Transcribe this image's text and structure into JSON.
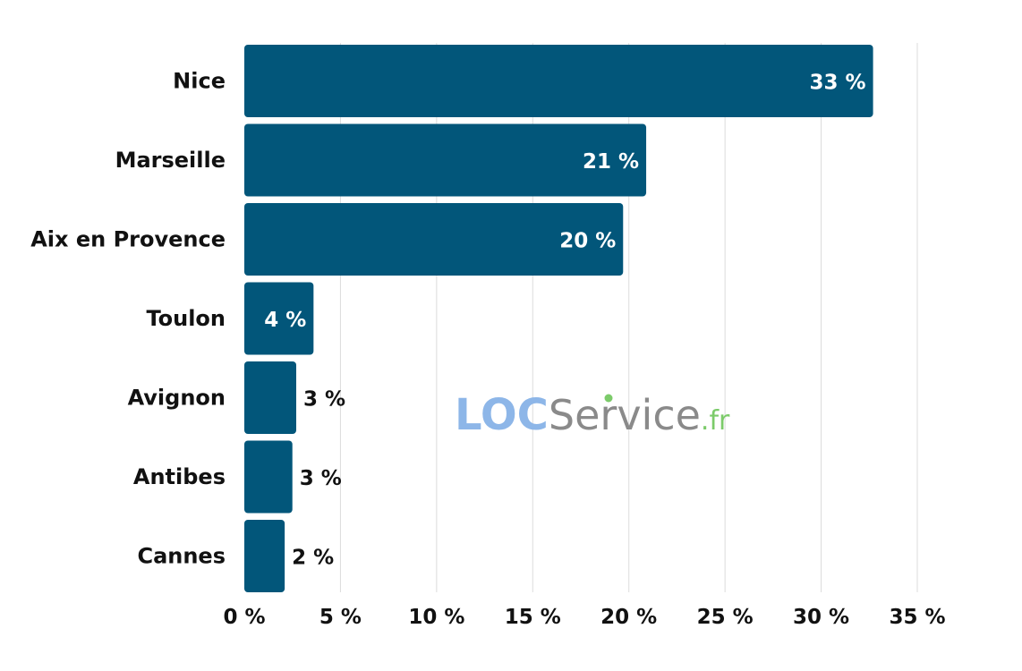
{
  "chart_data": {
    "type": "bar",
    "orientation": "horizontal",
    "categories": [
      "Nice",
      "Marseille",
      "Aix en Provence",
      "Toulon",
      "Avignon",
      "Antibes",
      "Cannes"
    ],
    "values": [
      32.7,
      20.9,
      19.7,
      3.6,
      2.7,
      2.5,
      2.1
    ],
    "value_labels": [
      "33 %",
      "21 %",
      "20 %",
      "4 %",
      "3 %",
      "3 %",
      "2 %"
    ],
    "x_ticks": [
      0,
      5,
      10,
      15,
      20,
      25,
      30,
      35
    ],
    "x_tick_labels": [
      "0 %",
      "5 %",
      "10 %",
      "15 %",
      "20 %",
      "25 %",
      "30 %",
      "35 %"
    ],
    "xlim": [
      0,
      35
    ],
    "grid": "vertical",
    "bar_color": "#02567A"
  },
  "watermark": {
    "loc": "LOC",
    "service": "Service",
    "tld": ".fr",
    "loc_color": "#8DB6E8",
    "service_color": "#8A8A8A",
    "tld_color": "#7CCB6A"
  }
}
